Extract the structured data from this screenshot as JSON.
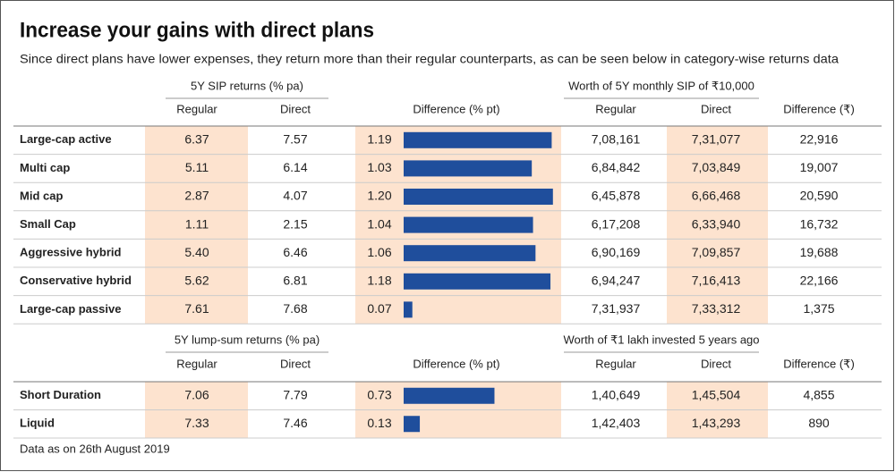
{
  "header": {
    "title": "Increase your gains with direct plans",
    "subtitle": "Since direct plans have lower expenses, they return more than their regular counterparts, as can be seen below in category-wise returns data"
  },
  "sections": [
    {
      "group_left": "5Y SIP returns (% pa)",
      "group_right": "Worth of 5Y monthly SIP of ₹10,000",
      "columns": [
        "Regular",
        "Direct",
        "Difference (% pt)",
        "Regular",
        "Direct",
        "Difference (₹)"
      ],
      "rows": [
        {
          "name": "Large-cap active",
          "values": [
            "6.37",
            "7.57",
            1.19,
            "7,08,161",
            "7,31,077",
            "22,916"
          ]
        },
        {
          "name": "Multi cap",
          "values": [
            "5.11",
            "6.14",
            1.03,
            "6,84,842",
            "7,03,849",
            "19,007"
          ]
        },
        {
          "name": "Mid cap",
          "values": [
            "2.87",
            "4.07",
            {
              "value": 1.2,
              "label": "1.20"
            },
            "6,45,878",
            "6,66,468",
            "20,590"
          ]
        },
        {
          "name": "Small Cap",
          "values": [
            "1.11",
            "2.15",
            1.04,
            "6,17,208",
            "6,33,940",
            "16,732"
          ]
        },
        {
          "name": "Aggressive hybrid",
          "values": [
            "5.40",
            "6.46",
            1.06,
            "6,90,169",
            "7,09,857",
            "19,688"
          ]
        },
        {
          "name": "Conservative hybrid",
          "values": [
            "5.62",
            "6.81",
            1.18,
            "6,94,247",
            "7,16,413",
            "22,166"
          ]
        },
        {
          "name": "Large-cap passive",
          "values": [
            "7.61",
            "7.68",
            0.07,
            "7,31,937",
            "7,33,312",
            "1,375"
          ]
        }
      ]
    },
    {
      "group_left": "5Y lump-sum returns (% pa)",
      "group_right": "Worth of ₹1 lakh invested 5 years ago",
      "columns": [
        "Regular",
        "Direct",
        "Difference (% pt)",
        "Regular",
        "Direct",
        "Difference (₹)"
      ],
      "rows": [
        {
          "name": "Short Duration",
          "values": [
            "7.06",
            "7.79",
            0.73,
            "1,40,649",
            "1,45,504",
            "4,855"
          ]
        },
        {
          "name": "Liquid",
          "values": [
            "7.33",
            "7.46",
            0.13,
            "1,42,403",
            "1,43,293",
            "890"
          ]
        }
      ]
    }
  ],
  "footnote": "Data as on 26th August 2019"
}
